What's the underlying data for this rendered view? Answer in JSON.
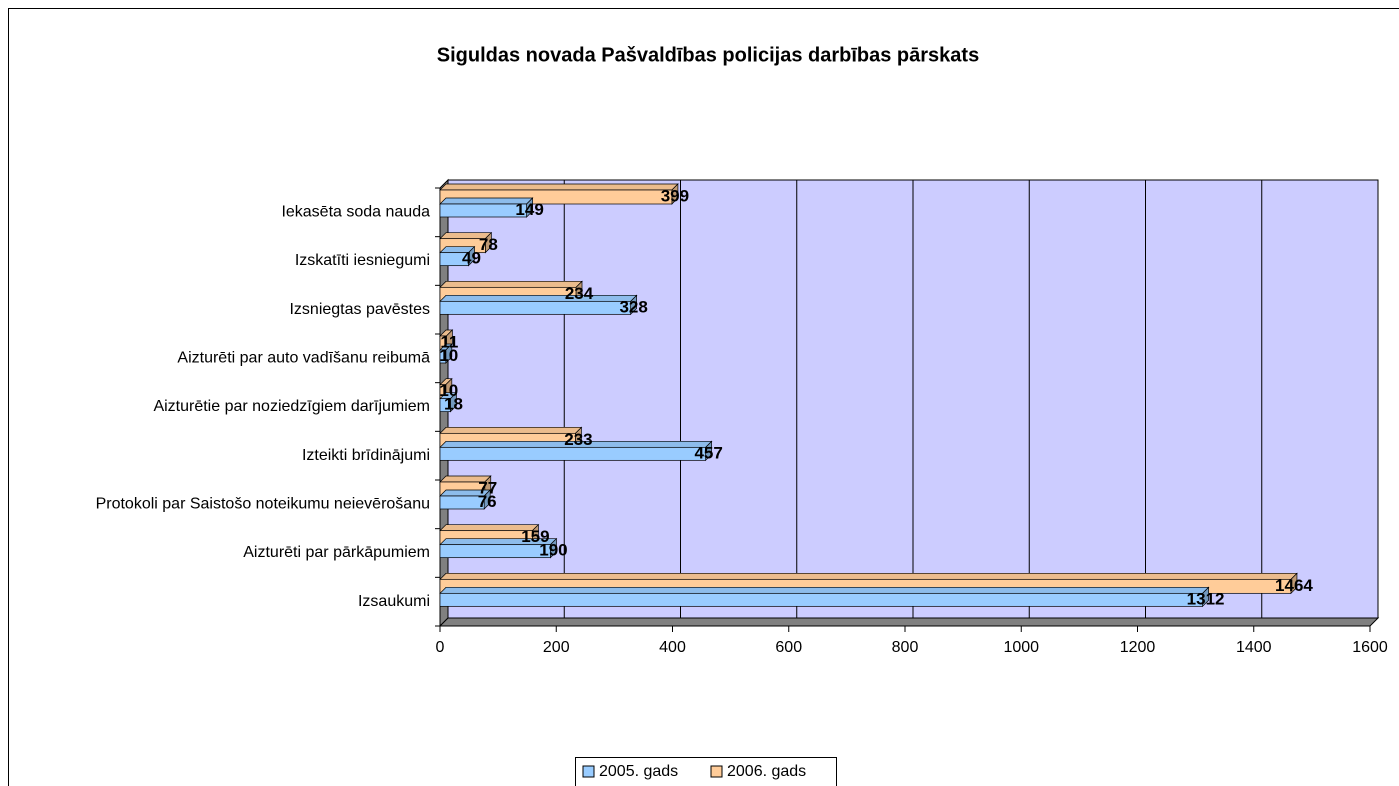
{
  "chart_data": {
    "type": "bar",
    "orientation": "horizontal",
    "title": "Siguldas novada Pašvaldības policijas darbības pārskats",
    "categories": [
      "Iekasēta soda nauda",
      "Izskatīti iesniegumi",
      "Izsniegtas pavēstes",
      "Aizturēti par auto vadīšanu reibumā",
      "Aizturētie par noziedzīgiem darījumiem",
      "Izteikti brīdinājumi",
      "Protokoli par Saistošo noteikumu neievērošanu",
      "Aizturēti par pārkāpumiem",
      "Izsaukumi"
    ],
    "series": [
      {
        "name": "2005. gads",
        "color": "#99ccff",
        "values": [
          149,
          49,
          328,
          10,
          18,
          457,
          76,
          190,
          1312
        ]
      },
      {
        "name": "2006. gads",
        "color": "#ffcc99",
        "values": [
          399,
          78,
          234,
          11,
          10,
          233,
          77,
          159,
          1464
        ]
      }
    ],
    "xlim": [
      0,
      1600
    ],
    "xticks": [
      0,
      200,
      400,
      600,
      800,
      1000,
      1200,
      1400,
      1600
    ],
    "grid": true,
    "legend": "bottom"
  }
}
